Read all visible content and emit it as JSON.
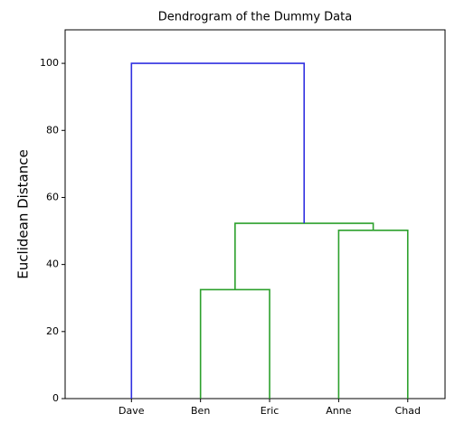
{
  "chart_data": {
    "type": "dendrogram",
    "title": "Dendrogram of the Dummy Data",
    "y_label": "Euclidean Distance",
    "categories": [
      "Dave",
      "Ben",
      "Eric",
      "Anne",
      "Chad"
    ],
    "links": [
      {
        "merge": [
          1,
          2
        ],
        "height": 32.5,
        "color": "#2ca02c"
      },
      {
        "merge": [
          3,
          4
        ],
        "height": 50.2,
        "color": "#2ca02c"
      },
      {
        "merge": [
          5,
          6
        ],
        "height": 52.3,
        "color": "#2ca02c"
      },
      {
        "merge": [
          0,
          7
        ],
        "height": 100,
        "color": "#3030e0"
      }
    ],
    "ylim": [
      0,
      110
    ],
    "yticks": [
      0,
      20,
      40,
      60,
      80,
      100
    ]
  }
}
